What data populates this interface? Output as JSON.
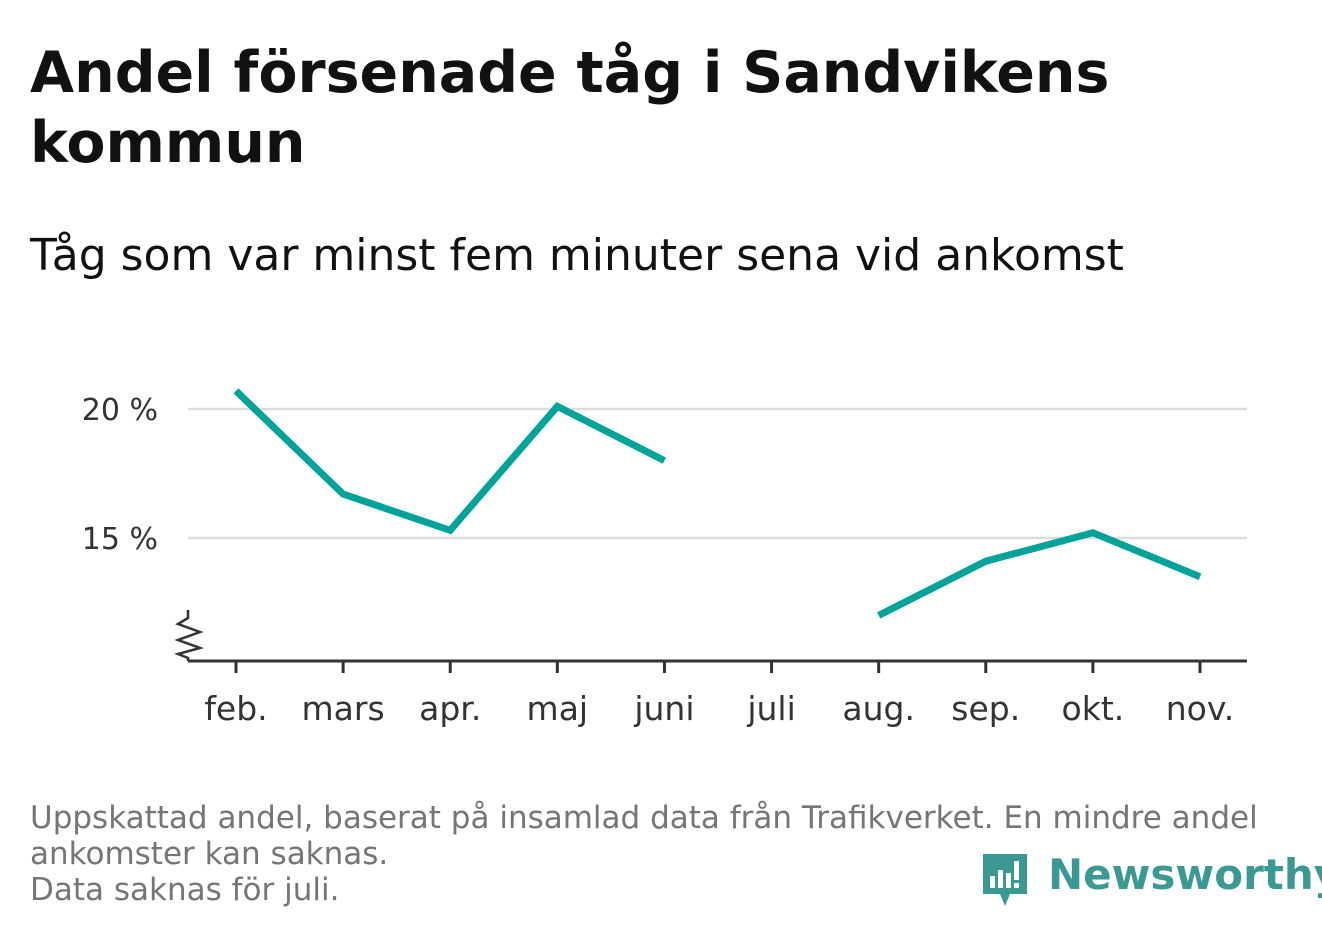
{
  "title": "Andel försenade tåg i Sandvikens kommun",
  "subtitle": "Tåg som var minst fem minuter sena vid ankomst",
  "footnote": {
    "line1": "Uppskattad andel, baserat på insamlad data från Trafikverket. En mindre andel",
    "line2": "ankomster kan saknas.",
    "line3": "Data saknas för juli."
  },
  "brand": {
    "name": "Newsworthy",
    "color": "#3a9a93"
  },
  "colors": {
    "line": "#00a39a",
    "grid": "#dddddd",
    "axis": "#333333",
    "text": "#333333"
  },
  "chart_data": {
    "type": "line",
    "title": "Andel försenade tåg i Sandvikens kommun",
    "subtitle": "Tåg som var minst fem minuter sena vid ankomst",
    "categories": [
      "feb.",
      "mars",
      "apr.",
      "maj",
      "juni",
      "juli",
      "aug.",
      "sep.",
      "okt.",
      "nov."
    ],
    "series": [
      {
        "values": [
          20.7,
          16.7,
          15.3,
          20.1,
          18.0,
          null,
          12.0,
          14.1,
          15.2,
          13.5
        ]
      }
    ],
    "y_ticks": [
      15,
      20
    ],
    "y_tick_labels": [
      "15 %",
      "20 %"
    ],
    "y_axis_break": true,
    "grid": true,
    "legend": "none"
  }
}
